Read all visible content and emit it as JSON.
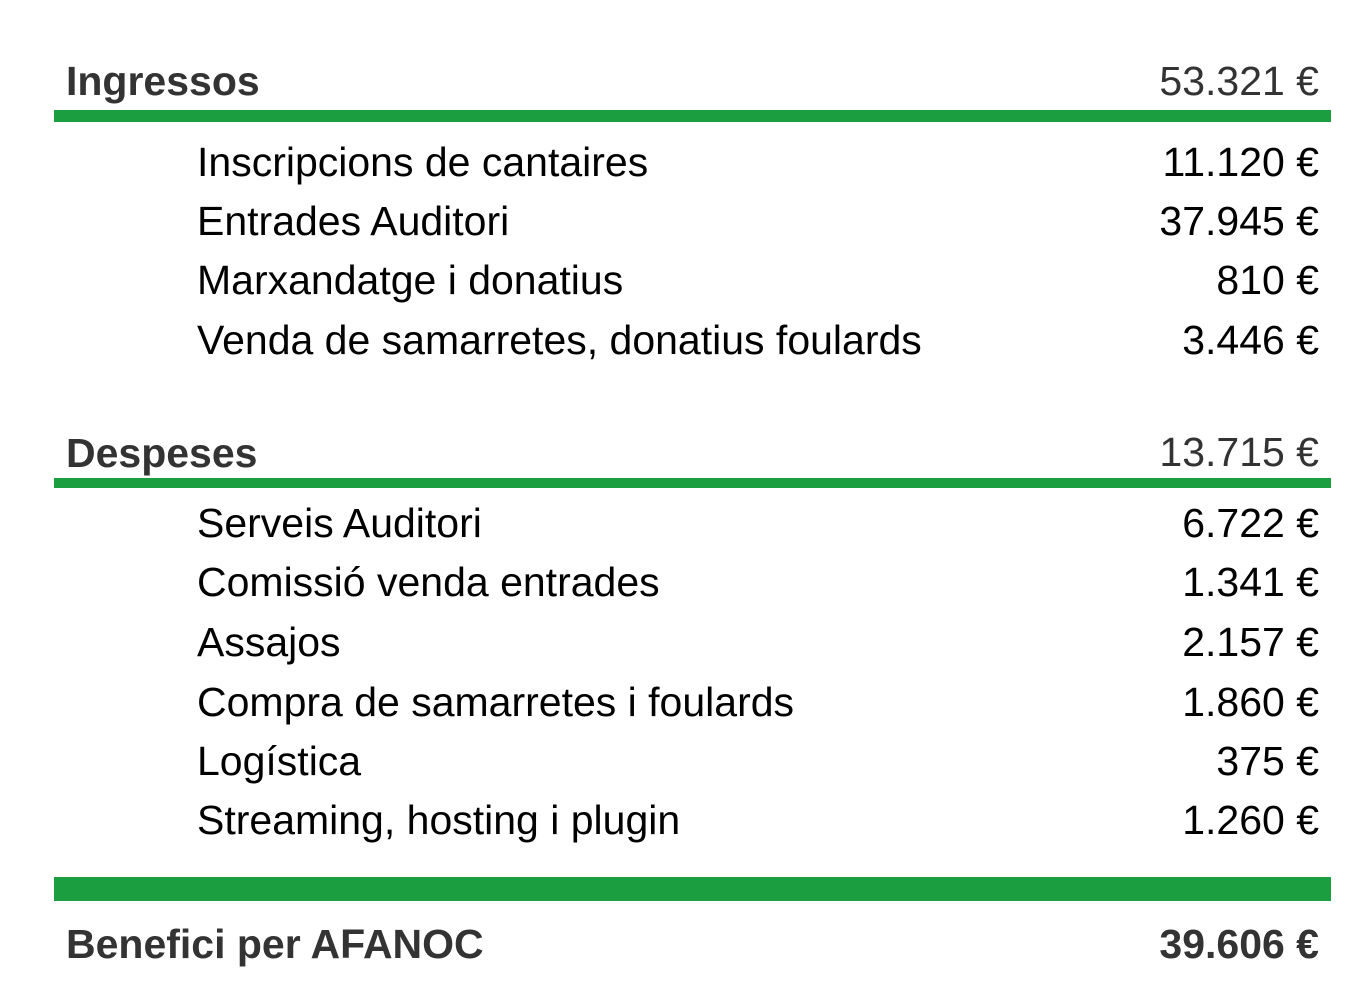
{
  "ingressos": {
    "label": "Ingressos",
    "total": "53.321 €",
    "items": [
      {
        "label": "Inscripcions de cantaires",
        "value": "11.120 €"
      },
      {
        "label": "Entrades Auditori",
        "value": "37.945 €"
      },
      {
        "label": "Marxandatge i donatius",
        "value": "810 €"
      },
      {
        "label": "Venda de samarretes, donatius foulards",
        "value": "3.446 €"
      }
    ]
  },
  "despeses": {
    "label": "Despeses",
    "total": "13.715 €",
    "items": [
      {
        "label": "Serveis Auditori",
        "value": "6.722 €"
      },
      {
        "label": "Comissió venda entrades",
        "value": "1.341 €"
      },
      {
        "label": "Assajos",
        "value": "2.157 €"
      },
      {
        "label": "Compra de samarretes i foulards",
        "value": "1.860 €"
      },
      {
        "label": "Logística",
        "value": "375 €"
      },
      {
        "label": "Streaming, hosting i plugin",
        "value": "1.260 €"
      }
    ]
  },
  "result": {
    "label": "Benefici per AFANOC",
    "value": "39.606 €"
  },
  "colors": {
    "accent": "#1a9e3f",
    "heading_text": "#333333",
    "body_text": "#000000"
  }
}
